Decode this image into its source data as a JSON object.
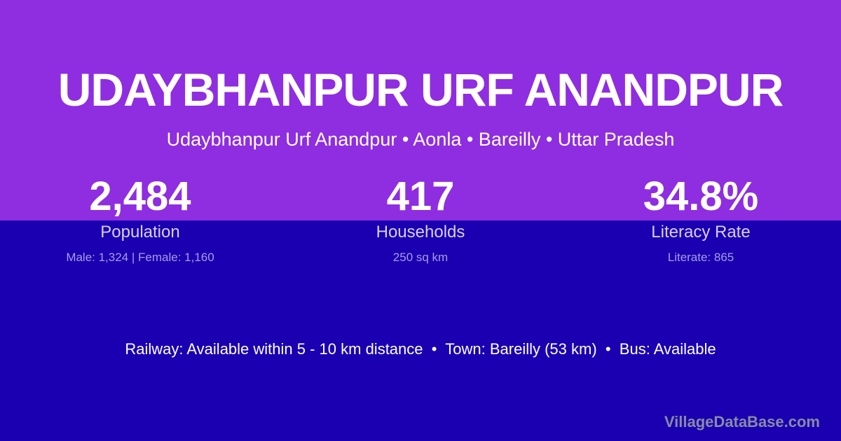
{
  "header": {
    "title": "UDAYBHANPUR URF ANANDPUR",
    "subtitle": "Udaybhanpur Urf Anandpur • Aonla • Bareilly • Uttar Pradesh"
  },
  "stats": [
    {
      "value": "2,484",
      "label": "Population",
      "sub": "Male: 1,324 | Female: 1,160"
    },
    {
      "value": "417",
      "label": "Households",
      "sub": "250 sq km"
    },
    {
      "value": "34.8%",
      "label": "Literacy Rate",
      "sub": "Literate: 865"
    }
  ],
  "transport": "Railway: Available within 5 - 10 km distance  •  Town: Bareilly (53 km)  •  Bus: Available",
  "brand": "VillageDataBase.com",
  "colors": {
    "top": "#8f2de0",
    "bottom": "#1a00b0"
  }
}
